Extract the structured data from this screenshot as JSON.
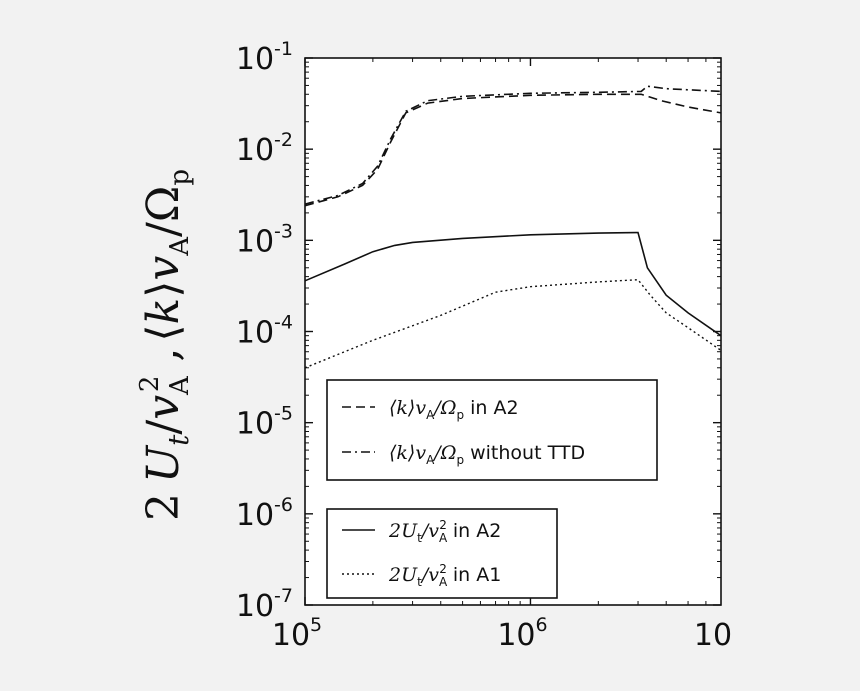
{
  "chart_data": {
    "type": "line",
    "x_scale": "log",
    "y_scale": "log",
    "xlim": [
      100000,
      7000000
    ],
    "ylim": [
      1e-07,
      0.1
    ],
    "x_ticks": [
      {
        "value": 100000,
        "base": "10",
        "exp": "5"
      },
      {
        "value": 1000000,
        "base": "10",
        "exp": "6"
      },
      {
        "value": 10000000,
        "base": "10",
        "exp": ""
      }
    ],
    "y_ticks": [
      {
        "value": 0.1,
        "base": "10",
        "exp": "-1"
      },
      {
        "value": 0.01,
        "base": "10",
        "exp": "-2"
      },
      {
        "value": 0.001,
        "base": "10",
        "exp": "-3"
      },
      {
        "value": 0.0001,
        "base": "10",
        "exp": "-4"
      },
      {
        "value": 1e-05,
        "base": "10",
        "exp": "-5"
      },
      {
        "value": 1e-06,
        "base": "10",
        "exp": "-6"
      },
      {
        "value": 1e-07,
        "base": "10",
        "exp": "-7"
      }
    ],
    "ylabel": "2 U_t / v_A^2 , ⟨k⟩ v_A / Ω_p",
    "grid": false,
    "series": [
      {
        "name": "⟨k⟩v_A/Ω_p in A2",
        "style": "dashed",
        "x": [
          100000,
          140000,
          180000,
          210000,
          240000,
          280000,
          350000,
          500000,
          1000000,
          2000000,
          3100000,
          3800000,
          5000000,
          7000000
        ],
        "y": [
          0.0024,
          0.003,
          0.004,
          0.006,
          0.012,
          0.025,
          0.032,
          0.036,
          0.039,
          0.04,
          0.04,
          0.034,
          0.029,
          0.025
        ]
      },
      {
        "name": "⟨k⟩v_A/Ω_p without TTD",
        "style": "dashdot",
        "x": [
          100000,
          140000,
          180000,
          210000,
          240000,
          280000,
          350000,
          500000,
          1000000,
          2000000,
          3100000,
          3300000,
          4000000,
          7000000
        ],
        "y": [
          0.0025,
          0.0031,
          0.0042,
          0.0065,
          0.013,
          0.026,
          0.034,
          0.038,
          0.041,
          0.042,
          0.043,
          0.049,
          0.046,
          0.043
        ]
      },
      {
        "name": "2U_t/v_A^2 in A2",
        "style": "solid",
        "x": [
          100000,
          150000,
          200000,
          250000,
          300000,
          500000,
          1000000,
          2000000,
          3000000,
          3300000,
          4000000,
          5000000,
          7000000
        ],
        "y": [
          0.00036,
          0.00055,
          0.00075,
          0.00088,
          0.00095,
          0.00105,
          0.00115,
          0.0012,
          0.00122,
          0.0005,
          0.00025,
          0.00016,
          9e-05
        ]
      },
      {
        "name": "2U_t/v_A^2 in A1",
        "style": "dotted",
        "x": [
          100000,
          200000,
          400000,
          700000,
          1000000,
          2000000,
          3000000,
          3400000,
          4000000,
          5000000,
          7000000
        ],
        "y": [
          4e-05,
          8e-05,
          0.00015,
          0.00027,
          0.00031,
          0.00035,
          0.00037,
          0.00025,
          0.00016,
          0.00011,
          6.2e-05
        ]
      }
    ],
    "legends": [
      {
        "placement": "center-lower",
        "entries": [
          {
            "series_index": 0,
            "style": "dashed",
            "math": "⟨k⟩v",
            "sub1": "A",
            "mid": "/Ω",
            "sub2": "p",
            "text": " in A2"
          },
          {
            "series_index": 1,
            "style": "dashdot",
            "math": "⟨k⟩v",
            "sub1": "A",
            "mid": "/Ω",
            "sub2": "p",
            "text": " without TTD"
          }
        ]
      },
      {
        "placement": "lower-left",
        "entries": [
          {
            "series_index": 2,
            "style": "solid",
            "math": "2U",
            "sub1": "t",
            "mid": "/v",
            "sub2": "A",
            "sup2": "2",
            "text": "  in A2"
          },
          {
            "series_index": 3,
            "style": "dotted",
            "math": "2U",
            "sub1": "t",
            "mid": "/v",
            "sub2": "A",
            "sup2": "2",
            "text": "  in A1"
          }
        ]
      }
    ]
  }
}
